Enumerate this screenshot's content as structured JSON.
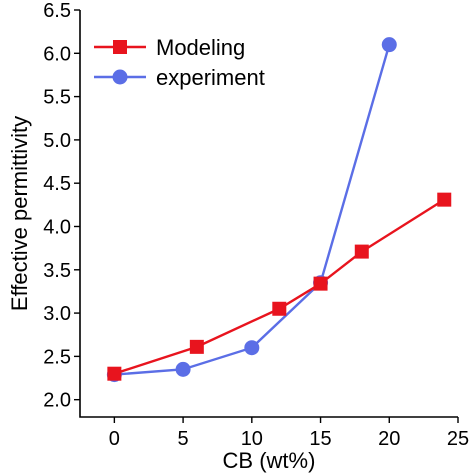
{
  "chart_data": {
    "type": "line",
    "xlabel": "CB (wt%)",
    "ylabel": "Effective permittivity",
    "xlim": [
      -2.5,
      25
    ],
    "ylim": [
      1.8,
      6.5
    ],
    "xticks": [
      0,
      5,
      10,
      15,
      20,
      25
    ],
    "yticks": [
      2.0,
      2.5,
      3.0,
      3.5,
      4.0,
      4.5,
      5.0,
      5.5,
      6.0,
      6.5
    ],
    "grid": false,
    "legend_position": "top-left",
    "series": [
      {
        "name": "Modeling",
        "marker": "square",
        "color": "#e8141e",
        "x": [
          0,
          6,
          12,
          15,
          18,
          24
        ],
        "y": [
          2.3,
          2.61,
          3.05,
          3.34,
          3.71,
          4.31
        ]
      },
      {
        "name": "experiment",
        "marker": "circle",
        "color": "#5b6ee6",
        "x": [
          0,
          5,
          10,
          15,
          20
        ],
        "y": [
          2.29,
          2.35,
          2.6,
          3.35,
          6.1
        ]
      }
    ]
  }
}
